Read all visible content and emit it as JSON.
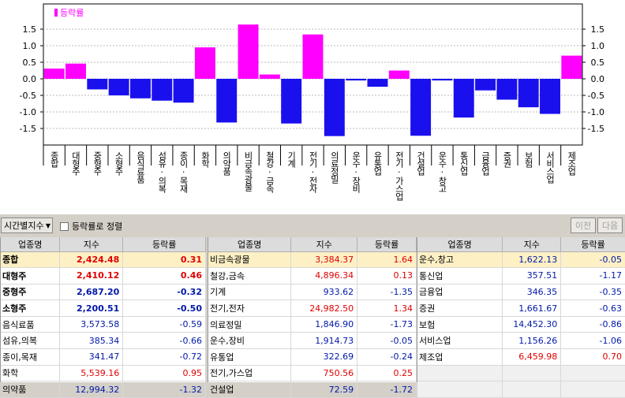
{
  "colors": {
    "up": "#e00000",
    "down": "#0018a8",
    "bar_pos": "#ff00ff",
    "bar_neg": "#1a10ee",
    "highlight": "#fdf0c4"
  },
  "chart_data": {
    "type": "bar",
    "legend": "등락률",
    "legend_icon": "magenta-square-icon",
    "ylim": [
      -1.9,
      1.9
    ],
    "y_ticks": [
      "1.5",
      "1.0",
      "0.5",
      "0.0",
      "-0.5",
      "-1.0",
      "-1.5"
    ],
    "y_tick_values": [
      1.5,
      1.0,
      0.5,
      0.0,
      -0.5,
      -1.0,
      -1.5
    ],
    "categories": [
      "종합",
      "대형주",
      "중형주",
      "소형주",
      "음식료품",
      "섬유·의복",
      "종이·목재",
      "화학",
      "의약품",
      "비금속광물",
      "철강·금속",
      "기계",
      "전기·전자",
      "의료정밀",
      "운수·장비",
      "유통업",
      "전기·가스업",
      "건설업",
      "운수·창고",
      "통신업",
      "금융업",
      "증권",
      "보험",
      "서비스업",
      "제조업"
    ],
    "values": [
      0.31,
      0.46,
      -0.32,
      -0.5,
      -0.59,
      -0.66,
      -0.72,
      0.95,
      -1.32,
      1.64,
      0.13,
      -1.35,
      1.34,
      -1.73,
      -0.05,
      -0.24,
      0.25,
      -1.72,
      -0.05,
      -1.17,
      -0.35,
      -0.63,
      -0.86,
      -1.06,
      0.7
    ]
  },
  "toolbar": {
    "period": "시간별지수",
    "sort_label": "등락률로 정렬",
    "prev": "이전",
    "next": "다음"
  },
  "grids": [
    {
      "headers": [
        "업종명",
        "지수",
        "등락률"
      ],
      "rows": [
        {
          "name": "종합",
          "index": "2,424.48",
          "rate": "0.31",
          "dir": "up",
          "bold": true,
          "hl": true
        },
        {
          "name": "대형주",
          "index": "2,410.12",
          "rate": "0.46",
          "dir": "up",
          "bold": true,
          "hl": false
        },
        {
          "name": "중형주",
          "index": "2,687.20",
          "rate": "-0.32",
          "dir": "down",
          "bold": true,
          "hl": false
        },
        {
          "name": "소형주",
          "index": "2,200.51",
          "rate": "-0.50",
          "dir": "down",
          "bold": true,
          "hl": false
        },
        {
          "name": "음식료품",
          "index": "3,573.58",
          "rate": "-0.59",
          "dir": "down",
          "bold": false,
          "hl": false
        },
        {
          "name": "섬유,의복",
          "index": "385.34",
          "rate": "-0.66",
          "dir": "down",
          "bold": false,
          "hl": false
        },
        {
          "name": "종이,목재",
          "index": "341.47",
          "rate": "-0.72",
          "dir": "down",
          "bold": false,
          "hl": false
        },
        {
          "name": "화학",
          "index": "5,539.16",
          "rate": "0.95",
          "dir": "up",
          "bold": false,
          "hl": false
        },
        {
          "name": "의약품",
          "index": "12,994.32",
          "rate": "-1.32",
          "dir": "down",
          "bold": false,
          "hl": false
        }
      ]
    },
    {
      "headers": [
        "업종명",
        "지수",
        "등락률"
      ],
      "rows": [
        {
          "name": "비금속광물",
          "index": "3,384.37",
          "rate": "1.64",
          "dir": "up",
          "bold": false,
          "hl": true
        },
        {
          "name": "철강,금속",
          "index": "4,896.34",
          "rate": "0.13",
          "dir": "up",
          "bold": false,
          "hl": false
        },
        {
          "name": "기계",
          "index": "933.62",
          "rate": "-1.35",
          "dir": "down",
          "bold": false,
          "hl": false
        },
        {
          "name": "전기,전자",
          "index": "24,982.50",
          "rate": "1.34",
          "dir": "up",
          "bold": false,
          "hl": false
        },
        {
          "name": "의료정밀",
          "index": "1,846.90",
          "rate": "-1.73",
          "dir": "down",
          "bold": false,
          "hl": false
        },
        {
          "name": "운수,장비",
          "index": "1,914.73",
          "rate": "-0.05",
          "dir": "down",
          "bold": false,
          "hl": false
        },
        {
          "name": "유통업",
          "index": "322.69",
          "rate": "-0.24",
          "dir": "down",
          "bold": false,
          "hl": false
        },
        {
          "name": "전기,가스업",
          "index": "750.56",
          "rate": "0.25",
          "dir": "up",
          "bold": false,
          "hl": false
        },
        {
          "name": "건설업",
          "index": "72.59",
          "rate": "-1.72",
          "dir": "down",
          "bold": false,
          "hl": false
        }
      ]
    },
    {
      "headers": [
        "업종명",
        "지수",
        "등락률"
      ],
      "rows": [
        {
          "name": "운수,창고",
          "index": "1,622.13",
          "rate": "-0.05",
          "dir": "down",
          "bold": false,
          "hl": true
        },
        {
          "name": "통신업",
          "index": "357.51",
          "rate": "-1.17",
          "dir": "down",
          "bold": false,
          "hl": false
        },
        {
          "name": "금융업",
          "index": "346.35",
          "rate": "-0.35",
          "dir": "down",
          "bold": false,
          "hl": false
        },
        {
          "name": "증권",
          "index": "1,661.67",
          "rate": "-0.63",
          "dir": "down",
          "bold": false,
          "hl": false
        },
        {
          "name": "보험",
          "index": "14,452.30",
          "rate": "-0.86",
          "dir": "down",
          "bold": false,
          "hl": false
        },
        {
          "name": "서비스업",
          "index": "1,156.26",
          "rate": "-1.06",
          "dir": "down",
          "bold": false,
          "hl": false
        },
        {
          "name": "제조업",
          "index": "6,459.98",
          "rate": "0.70",
          "dir": "up",
          "bold": false,
          "hl": false
        },
        {
          "name": "",
          "index": "",
          "rate": "",
          "dir": "",
          "bold": false,
          "hl": false
        },
        {
          "name": "",
          "index": "",
          "rate": "",
          "dir": "",
          "bold": false,
          "hl": false
        }
      ]
    }
  ]
}
